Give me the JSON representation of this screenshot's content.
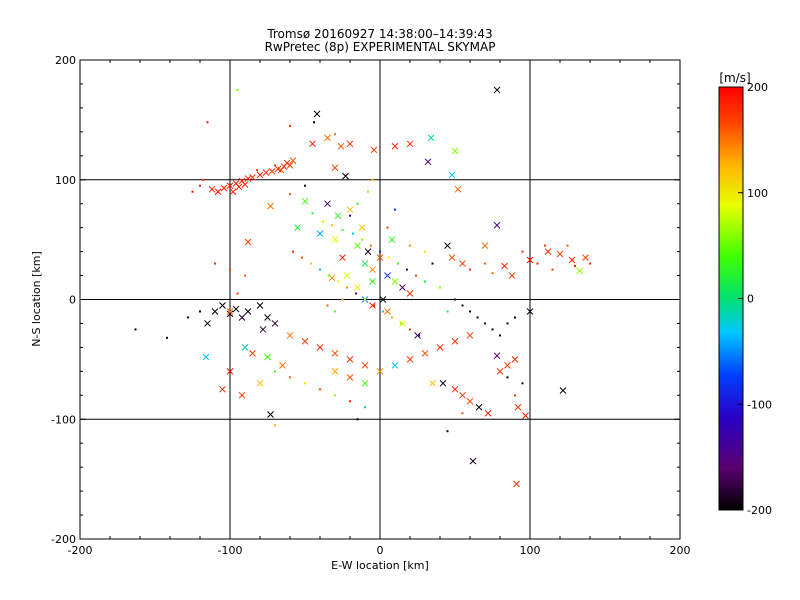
{
  "chart_data": {
    "type": "scatter",
    "title": "Tromsø 20160927 14:38:00–14:39:43",
    "subtitle": "RwPretec (8p) EXPERIMENTAL SKYMAP",
    "xlabel": "E-W location [km]",
    "ylabel": "N-S location [km]",
    "xlim": [
      -200,
      200
    ],
    "ylim": [
      -200,
      200
    ],
    "x_ticks": [
      -200,
      -100,
      0,
      100,
      200
    ],
    "y_ticks": [
      -200,
      -100,
      0,
      100,
      200
    ],
    "grid_lines_x": [
      -100,
      0,
      100
    ],
    "grid_lines_y": [
      -100,
      0,
      100
    ],
    "colorbar": {
      "label": "[m/s]",
      "range": [
        -200,
        200
      ],
      "ticks": [
        -200,
        -100,
        0,
        100,
        200
      ],
      "colormap": "rainbow: black→purple→blue→cyan→green→yellow→orange→red",
      "placement": "right"
    },
    "marker_types": [
      "cross (x)",
      "dot"
    ],
    "series": [
      {
        "marker": "x",
        "points": [
          [
            -112,
            92,
            190
          ],
          [
            -108,
            90,
            195
          ],
          [
            -104,
            93,
            185
          ],
          [
            -100,
            95,
            190
          ],
          [
            -96,
            97,
            180
          ],
          [
            -92,
            99,
            185
          ],
          [
            -88,
            101,
            190
          ],
          [
            -85,
            102,
            175
          ],
          [
            -80,
            104,
            180
          ],
          [
            -76,
            106,
            185
          ],
          [
            -72,
            107,
            170
          ],
          [
            -68,
            109,
            175
          ],
          [
            -64,
            111,
            180
          ],
          [
            -60,
            112,
            165
          ],
          [
            -98,
            90,
            190
          ],
          [
            -94,
            94,
            185
          ],
          [
            -90,
            96,
            180
          ],
          [
            -66,
            108,
            170
          ],
          [
            -62,
            114,
            175
          ],
          [
            -58,
            116,
            160
          ],
          [
            -45,
            130,
            190
          ],
          [
            -20,
            130,
            180
          ],
          [
            -4,
            125,
            175
          ],
          [
            10,
            128,
            185
          ],
          [
            20,
            130,
            180
          ],
          [
            32,
            115,
            -150
          ],
          [
            34,
            135,
            -10
          ],
          [
            50,
            124,
            60
          ],
          [
            48,
            104,
            -30
          ],
          [
            52,
            92,
            160
          ],
          [
            -73,
            78,
            150
          ],
          [
            -50,
            82,
            40
          ],
          [
            -35,
            80,
            -170
          ],
          [
            -28,
            70,
            30
          ],
          [
            -20,
            75,
            120
          ],
          [
            -55,
            60,
            20
          ],
          [
            -40,
            55,
            -40
          ],
          [
            -30,
            50,
            90
          ],
          [
            -15,
            45,
            50
          ],
          [
            -8,
            40,
            -190
          ],
          [
            -25,
            35,
            180
          ],
          [
            -10,
            30,
            10
          ],
          [
            -5,
            25,
            140
          ],
          [
            5,
            20,
            -80
          ],
          [
            10,
            15,
            60
          ],
          [
            15,
            10,
            -160
          ],
          [
            20,
            5,
            170
          ],
          [
            -5,
            15,
            30
          ],
          [
            -15,
            10,
            100
          ],
          [
            2,
            0,
            -200
          ],
          [
            45,
            45,
            -190
          ],
          [
            48,
            35,
            160
          ],
          [
            55,
            30,
            170
          ],
          [
            70,
            45,
            150
          ],
          [
            78,
            62,
            -150
          ],
          [
            83,
            28,
            180
          ],
          [
            88,
            20,
            175
          ],
          [
            100,
            33,
            190
          ],
          [
            112,
            40,
            175
          ],
          [
            120,
            38,
            170
          ],
          [
            128,
            33,
            180
          ],
          [
            133,
            24,
            60
          ],
          [
            137,
            35,
            165
          ],
          [
            -110,
            -10,
            -200
          ],
          [
            -105,
            -5,
            -195
          ],
          [
            -100,
            -12,
            -190
          ],
          [
            -96,
            -8,
            -200
          ],
          [
            -92,
            -15,
            -185
          ],
          [
            -88,
            -10,
            -195
          ],
          [
            -80,
            -5,
            -200
          ],
          [
            -75,
            -15,
            -190
          ],
          [
            -70,
            -20,
            -185
          ],
          [
            -115,
            -20,
            -195
          ],
          [
            -78,
            -25,
            -180
          ],
          [
            -60,
            -30,
            150
          ],
          [
            -50,
            -35,
            170
          ],
          [
            -40,
            -40,
            180
          ],
          [
            -30,
            -45,
            160
          ],
          [
            -20,
            -50,
            175
          ],
          [
            -10,
            -55,
            165
          ],
          [
            -90,
            -40,
            -20
          ],
          [
            -85,
            -45,
            170
          ],
          [
            -75,
            -48,
            40
          ],
          [
            -65,
            -55,
            150
          ],
          [
            -80,
            -70,
            120
          ],
          [
            -100,
            -60,
            190
          ],
          [
            -105,
            -75,
            185
          ],
          [
            -92,
            -80,
            175
          ],
          [
            -73,
            -96,
            -200
          ],
          [
            -116,
            -48,
            -30
          ],
          [
            -30,
            -60,
            130
          ],
          [
            -20,
            -65,
            160
          ],
          [
            -10,
            -70,
            40
          ],
          [
            0,
            -60,
            140
          ],
          [
            10,
            -55,
            -30
          ],
          [
            20,
            -50,
            170
          ],
          [
            30,
            -45,
            160
          ],
          [
            40,
            -40,
            180
          ],
          [
            50,
            -35,
            175
          ],
          [
            60,
            -30,
            170
          ],
          [
            35,
            -70,
            120
          ],
          [
            42,
            -70,
            -200
          ],
          [
            50,
            -75,
            190
          ],
          [
            55,
            -80,
            170
          ],
          [
            60,
            -85,
            165
          ],
          [
            66,
            -90,
            -200
          ],
          [
            72,
            -95,
            185
          ],
          [
            80,
            -60,
            175
          ],
          [
            85,
            -55,
            170
          ],
          [
            90,
            -50,
            180
          ],
          [
            78,
            -47,
            -160
          ],
          [
            92,
            -90,
            175
          ],
          [
            97,
            -97,
            190
          ],
          [
            100,
            -10,
            -190
          ],
          [
            122,
            -76,
            -200
          ],
          [
            -42,
            155,
            -200
          ],
          [
            -35,
            135,
            150
          ],
          [
            -26,
            128,
            160
          ],
          [
            -23,
            103,
            -200
          ],
          [
            -30,
            110,
            170
          ],
          [
            78,
            175,
            -200
          ],
          [
            -88,
            48,
            170
          ],
          [
            -100,
            -10,
            150
          ],
          [
            62,
            -135,
            -190
          ],
          [
            91,
            -154,
            180
          ],
          [
            -5,
            -5,
            180
          ],
          [
            5,
            -10,
            150
          ],
          [
            -10,
            0,
            -50
          ],
          [
            15,
            -20,
            100
          ],
          [
            25,
            -30,
            -180
          ],
          [
            -22,
            20,
            80
          ],
          [
            -32,
            18,
            140
          ],
          [
            0,
            35,
            160
          ],
          [
            8,
            50,
            30
          ],
          [
            -12,
            60,
            120
          ]
        ]
      },
      {
        "marker": "dot",
        "points": [
          [
            -115,
            148,
            190
          ],
          [
            -95,
            175,
            60
          ],
          [
            -44,
            148,
            -200
          ],
          [
            -60,
            145,
            180
          ],
          [
            -30,
            138,
            150
          ],
          [
            -120,
            95,
            185
          ],
          [
            -125,
            90,
            195
          ],
          [
            -118,
            100,
            175
          ],
          [
            -82,
            108,
            170
          ],
          [
            -70,
            112,
            165
          ],
          [
            -60,
            88,
            160
          ],
          [
            -50,
            95,
            -190
          ],
          [
            -45,
            72,
            20
          ],
          [
            -38,
            65,
            80
          ],
          [
            -32,
            62,
            120
          ],
          [
            -25,
            58,
            40
          ],
          [
            -18,
            55,
            -20
          ],
          [
            -12,
            50,
            60
          ],
          [
            -6,
            45,
            150
          ],
          [
            0,
            40,
            -90
          ],
          [
            6,
            35,
            100
          ],
          [
            12,
            30,
            30
          ],
          [
            18,
            25,
            -150
          ],
          [
            24,
            20,
            170
          ],
          [
            30,
            15,
            10
          ],
          [
            -58,
            40,
            180
          ],
          [
            -52,
            35,
            160
          ],
          [
            -46,
            30,
            120
          ],
          [
            -40,
            25,
            -40
          ],
          [
            -34,
            20,
            50
          ],
          [
            -28,
            15,
            90
          ],
          [
            -22,
            10,
            140
          ],
          [
            -16,
            5,
            -160
          ],
          [
            -10,
            0,
            70
          ],
          [
            -4,
            -5,
            180
          ],
          [
            2,
            -10,
            -30
          ],
          [
            8,
            -15,
            130
          ],
          [
            14,
            -20,
            60
          ],
          [
            20,
            -25,
            170
          ],
          [
            26,
            -30,
            -120
          ],
          [
            -110,
            30,
            180
          ],
          [
            -100,
            25,
            170
          ],
          [
            -90,
            20,
            160
          ],
          [
            -95,
            5,
            175
          ],
          [
            -120,
            -10,
            -200
          ],
          [
            -163,
            -25,
            -200
          ],
          [
            -142,
            -32,
            -195
          ],
          [
            -128,
            -15,
            -190
          ],
          [
            -70,
            -60,
            40
          ],
          [
            -60,
            -65,
            160
          ],
          [
            -50,
            -70,
            100
          ],
          [
            -40,
            -75,
            170
          ],
          [
            -30,
            -80,
            60
          ],
          [
            -20,
            -85,
            180
          ],
          [
            -10,
            -90,
            -10
          ],
          [
            55,
            -5,
            -190
          ],
          [
            60,
            -10,
            -200
          ],
          [
            65,
            -15,
            -195
          ],
          [
            70,
            -20,
            -185
          ],
          [
            75,
            -25,
            -200
          ],
          [
            80,
            -30,
            -190
          ],
          [
            85,
            -20,
            -195
          ],
          [
            90,
            -15,
            -200
          ],
          [
            50,
            0,
            -170
          ],
          [
            45,
            -10,
            20
          ],
          [
            60,
            25,
            170
          ],
          [
            70,
            30,
            160
          ],
          [
            75,
            22,
            150
          ],
          [
            95,
            40,
            180
          ],
          [
            105,
            30,
            185
          ],
          [
            110,
            45,
            170
          ],
          [
            115,
            25,
            175
          ],
          [
            125,
            45,
            165
          ],
          [
            130,
            28,
            190
          ],
          [
            140,
            30,
            180
          ],
          [
            -70,
            -105,
            130
          ],
          [
            -15,
            -100,
            -200
          ],
          [
            45,
            -110,
            -200
          ],
          [
            55,
            -95,
            160
          ],
          [
            90,
            -80,
            175
          ],
          [
            95,
            -70,
            -190
          ],
          [
            85,
            -65,
            -200
          ],
          [
            -35,
            -5,
            160
          ],
          [
            -30,
            -10,
            40
          ],
          [
            -25,
            0,
            120
          ],
          [
            -20,
            70,
            -150
          ],
          [
            -15,
            80,
            30
          ],
          [
            -8,
            90,
            60
          ],
          [
            5,
            60,
            170
          ],
          [
            10,
            75,
            -80
          ],
          [
            20,
            45,
            140
          ],
          [
            30,
            40,
            100
          ],
          [
            35,
            30,
            -200
          ],
          [
            40,
            10,
            60
          ],
          [
            -5,
            100,
            120
          ]
        ]
      }
    ]
  }
}
